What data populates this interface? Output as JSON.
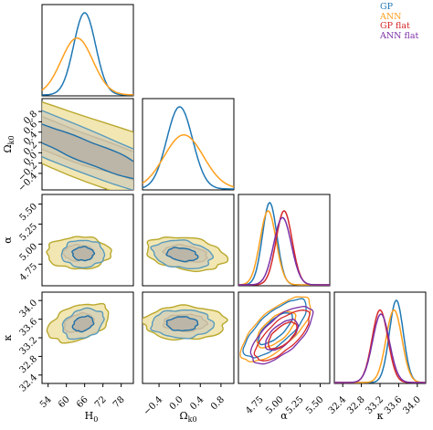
{
  "colors": {
    "GP": "#1f77b4",
    "ANN": "#ff9f1c",
    "GP flat": "#d62728",
    "ANN flat": "#7b2fa6",
    "fill": "#d4c9a8"
  },
  "legend": [
    "GP",
    "ANN",
    "GP flat",
    "ANN flat"
  ],
  "chart_data": {
    "type": "corner",
    "params": [
      "H_0",
      "Ω_k0",
      "α",
      "κ"
    ],
    "axis_labels": {
      "x": [
        "H",
        "0",
        "Ω",
        "k0",
        "α",
        "",
        "κ",
        ""
      ],
      "y": [
        "Ω",
        "k0",
        "α",
        "",
        "κ",
        ""
      ]
    },
    "ranges": {
      "H0": [
        52,
        82
      ],
      "Ok0": [
        -0.72,
        1.05
      ],
      "alpha": [
        4.48,
        5.62
      ],
      "kappa": [
        32.22,
        34.18
      ]
    },
    "ticks": {
      "H0": {
        "values": [
          54,
          60,
          66,
          72,
          78
        ],
        "labels": [
          "54",
          "60",
          "66",
          "72",
          "78"
        ]
      },
      "Ok0": {
        "values": [
          -0.4,
          0.0,
          0.4,
          0.8
        ],
        "labels": [
          "−0.4",
          "0.0",
          "0.4",
          "0.8"
        ]
      },
      "Ok0_y": {
        "values": [
          -0.4,
          -0.2,
          0.0,
          0.2,
          0.4,
          0.6,
          0.8
        ],
        "labels": [
          "−0.4",
          "−0.2",
          "0.0",
          "0.2",
          "0.4",
          "0.6",
          "0.8"
        ]
      },
      "alpha": {
        "values": [
          4.75,
          5.0,
          5.25,
          5.5
        ],
        "labels": [
          "4.75",
          "5.00",
          "5.25",
          "5.50"
        ]
      },
      "kappa_x": {
        "values": [
          32.4,
          32.8,
          33.2,
          33.6,
          34.0
        ],
        "labels": [
          "32.4",
          "32.8",
          "33.2",
          "33.6",
          "34.0"
        ]
      },
      "kappa_y": {
        "values": [
          32.4,
          32.8,
          33.2,
          33.6,
          34.0
        ],
        "labels": [
          "32.4",
          "32.8",
          "33.2",
          "33.6",
          "34.0"
        ]
      }
    },
    "marginals": {
      "H0": [
        {
          "series": "GP",
          "mean": 66,
          "sd": 3.6
        },
        {
          "series": "ANN",
          "mean": 63.5,
          "sd": 5.2
        }
      ],
      "Ok0": [
        {
          "series": "GP",
          "mean": 0.0,
          "sd": 0.25
        },
        {
          "series": "ANN",
          "mean": 0.08,
          "sd": 0.38
        }
      ],
      "alpha": [
        {
          "series": "GP",
          "mean": 4.87,
          "sd": 0.09
        },
        {
          "series": "ANN",
          "mean": 4.85,
          "sd": 0.1
        },
        {
          "series": "GP flat",
          "mean": 5.05,
          "sd": 0.1
        },
        {
          "series": "ANN flat",
          "mean": 5.03,
          "sd": 0.11
        }
      ],
      "kappa": [
        {
          "series": "GP",
          "mean": 33.55,
          "sd": 0.15
        },
        {
          "series": "ANN",
          "mean": 33.5,
          "sd": 0.17
        },
        {
          "series": "GP flat",
          "mean": 33.2,
          "sd": 0.17
        },
        {
          "series": "ANN flat",
          "mean": 33.22,
          "sd": 0.18
        }
      ]
    },
    "contours": {
      "H0_Ok0": [
        {
          "series": "ANN",
          "center": [
            64,
            0.12
          ],
          "inner": [
            5,
            0.42
          ],
          "outer": [
            10,
            0.8
          ],
          "tilt_deg": -70
        },
        {
          "series": "GP",
          "center": [
            65.5,
            0.05
          ],
          "inner": [
            3.5,
            0.28
          ],
          "outer": [
            7,
            0.58
          ],
          "tilt_deg": -68
        }
      ],
      "H0_alpha": [
        {
          "series": "ANN",
          "center": [
            64,
            4.89
          ],
          "inner": [
            5,
            0.1
          ],
          "outer": [
            10.5,
            0.2
          ],
          "tilt_deg": 0
        },
        {
          "series": "GP",
          "center": [
            65.5,
            4.88
          ],
          "inner": [
            3.5,
            0.085
          ],
          "outer": [
            7,
            0.17
          ],
          "tilt_deg": 0
        }
      ],
      "Ok0_alpha": [
        {
          "series": "ANN",
          "center": [
            0.12,
            4.88
          ],
          "inner": [
            0.42,
            0.1
          ],
          "outer": [
            0.78,
            0.2
          ],
          "tilt_deg": 8
        },
        {
          "series": "GP",
          "center": [
            0.05,
            4.87
          ],
          "inner": [
            0.3,
            0.08
          ],
          "outer": [
            0.58,
            0.17
          ],
          "tilt_deg": 8
        }
      ],
      "H0_kappa": [
        {
          "series": "ANN",
          "center": [
            64,
            33.52
          ],
          "inner": [
            5,
            0.18
          ],
          "outer": [
            10.5,
            0.36
          ],
          "tilt_deg": -20
        },
        {
          "series": "GP",
          "center": [
            65.5,
            33.5
          ],
          "inner": [
            3.5,
            0.15
          ],
          "outer": [
            7,
            0.3
          ],
          "tilt_deg": -22
        }
      ],
      "Ok0_kappa": [
        {
          "series": "ANN",
          "center": [
            0.1,
            33.52
          ],
          "inner": [
            0.42,
            0.18
          ],
          "outer": [
            0.8,
            0.36
          ],
          "tilt_deg": 0
        },
        {
          "series": "GP",
          "center": [
            0.05,
            33.5
          ],
          "inner": [
            0.3,
            0.15
          ],
          "outer": [
            0.6,
            0.3
          ],
          "tilt_deg": 0
        }
      ],
      "alpha_kappa": [
        {
          "series": "ANN",
          "center": [
            4.95,
            33.38
          ],
          "inner": [
            0.3,
            0.04
          ],
          "outer": [
            0.55,
            0.065
          ],
          "tilt_deg": -42
        },
        {
          "series": "GP",
          "center": [
            4.94,
            33.4
          ],
          "inner": [
            0.27,
            0.03
          ],
          "outer": [
            0.5,
            0.055
          ],
          "tilt_deg": -42
        },
        {
          "series": "ANN flat",
          "center": [
            5.02,
            33.26
          ],
          "inner": [
            0.25,
            0.035
          ],
          "outer": [
            0.48,
            0.06
          ],
          "tilt_deg": -42
        },
        {
          "series": "GP flat",
          "center": [
            5.03,
            33.25
          ],
          "inner": [
            0.22,
            0.03
          ],
          "outer": [
            0.43,
            0.05
          ],
          "tilt_deg": -42
        }
      ]
    }
  }
}
